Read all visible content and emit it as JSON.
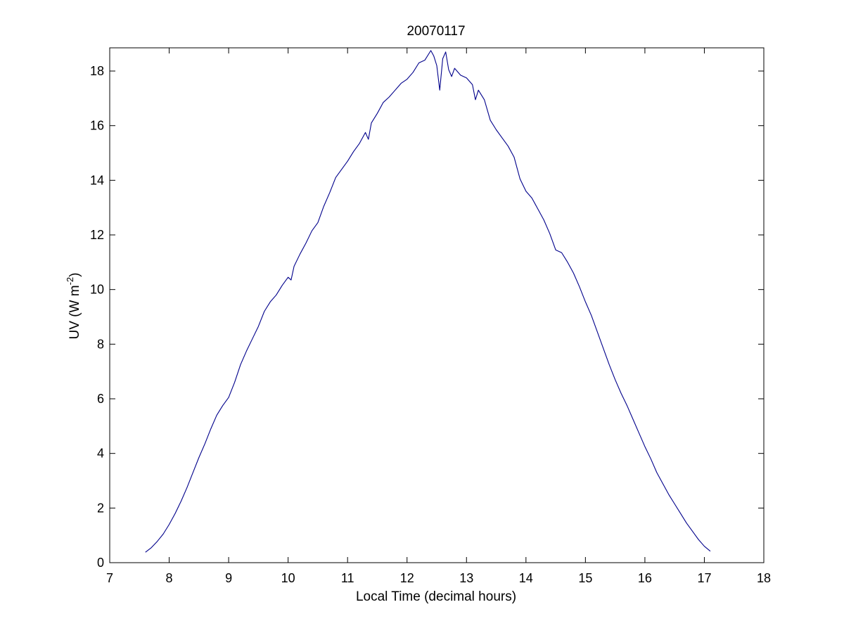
{
  "chart_data": {
    "type": "line",
    "title": "20070117",
    "xlabel": "Local Time (decimal hours)",
    "ylabel": {
      "main": "UV (W m",
      "superscript": "-2",
      "close": ")"
    },
    "xlim": [
      7,
      18
    ],
    "ylim": [
      0,
      18.85
    ],
    "xticks": [
      7,
      8,
      9,
      10,
      11,
      12,
      13,
      14,
      15,
      16,
      17,
      18
    ],
    "yticks": [
      0,
      2,
      4,
      6,
      8,
      10,
      12,
      14,
      16,
      18
    ],
    "grid": false,
    "box": true,
    "series": [
      {
        "color": "#00008b",
        "points": [
          [
            7.6,
            0.38
          ],
          [
            7.7,
            0.55
          ],
          [
            7.8,
            0.78
          ],
          [
            7.9,
            1.05
          ],
          [
            8.0,
            1.4
          ],
          [
            8.1,
            1.8
          ],
          [
            8.2,
            2.25
          ],
          [
            8.3,
            2.75
          ],
          [
            8.4,
            3.3
          ],
          [
            8.5,
            3.85
          ],
          [
            8.6,
            4.35
          ],
          [
            8.7,
            4.9
          ],
          [
            8.8,
            5.4
          ],
          [
            8.9,
            5.75
          ],
          [
            9.0,
            6.05
          ],
          [
            9.1,
            6.6
          ],
          [
            9.2,
            7.25
          ],
          [
            9.3,
            7.75
          ],
          [
            9.4,
            8.2
          ],
          [
            9.5,
            8.65
          ],
          [
            9.6,
            9.2
          ],
          [
            9.7,
            9.55
          ],
          [
            9.8,
            9.8
          ],
          [
            9.9,
            10.15
          ],
          [
            10.0,
            10.45
          ],
          [
            10.05,
            10.35
          ],
          [
            10.1,
            10.85
          ],
          [
            10.2,
            11.3
          ],
          [
            10.3,
            11.7
          ],
          [
            10.4,
            12.15
          ],
          [
            10.5,
            12.45
          ],
          [
            10.6,
            13.05
          ],
          [
            10.7,
            13.55
          ],
          [
            10.8,
            14.1
          ],
          [
            10.9,
            14.4
          ],
          [
            11.0,
            14.7
          ],
          [
            11.1,
            15.05
          ],
          [
            11.2,
            15.35
          ],
          [
            11.3,
            15.75
          ],
          [
            11.35,
            15.5
          ],
          [
            11.4,
            16.1
          ],
          [
            11.5,
            16.45
          ],
          [
            11.6,
            16.85
          ],
          [
            11.7,
            17.05
          ],
          [
            11.8,
            17.3
          ],
          [
            11.9,
            17.55
          ],
          [
            12.0,
            17.7
          ],
          [
            12.1,
            17.95
          ],
          [
            12.2,
            18.3
          ],
          [
            12.3,
            18.4
          ],
          [
            12.4,
            18.75
          ],
          [
            12.45,
            18.55
          ],
          [
            12.5,
            18.2
          ],
          [
            12.55,
            17.3
          ],
          [
            12.6,
            18.45
          ],
          [
            12.65,
            18.7
          ],
          [
            12.7,
            18.05
          ],
          [
            12.75,
            17.8
          ],
          [
            12.8,
            18.1
          ],
          [
            12.9,
            17.85
          ],
          [
            13.0,
            17.75
          ],
          [
            13.1,
            17.5
          ],
          [
            13.15,
            16.95
          ],
          [
            13.2,
            17.3
          ],
          [
            13.3,
            16.95
          ],
          [
            13.4,
            16.2
          ],
          [
            13.5,
            15.85
          ],
          [
            13.6,
            15.55
          ],
          [
            13.7,
            15.25
          ],
          [
            13.8,
            14.85
          ],
          [
            13.9,
            14.05
          ],
          [
            14.0,
            13.6
          ],
          [
            14.1,
            13.35
          ],
          [
            14.2,
            12.95
          ],
          [
            14.3,
            12.55
          ],
          [
            14.4,
            12.05
          ],
          [
            14.5,
            11.45
          ],
          [
            14.6,
            11.35
          ],
          [
            14.7,
            11.0
          ],
          [
            14.8,
            10.6
          ],
          [
            14.9,
            10.1
          ],
          [
            15.0,
            9.55
          ],
          [
            15.1,
            9.05
          ],
          [
            15.2,
            8.45
          ],
          [
            15.3,
            7.85
          ],
          [
            15.4,
            7.25
          ],
          [
            15.5,
            6.7
          ],
          [
            15.6,
            6.2
          ],
          [
            15.7,
            5.75
          ],
          [
            15.8,
            5.25
          ],
          [
            15.9,
            4.75
          ],
          [
            16.0,
            4.25
          ],
          [
            16.1,
            3.8
          ],
          [
            16.2,
            3.3
          ],
          [
            16.3,
            2.9
          ],
          [
            16.4,
            2.5
          ],
          [
            16.5,
            2.15
          ],
          [
            16.6,
            1.8
          ],
          [
            16.7,
            1.45
          ],
          [
            16.8,
            1.15
          ],
          [
            16.9,
            0.85
          ],
          [
            17.0,
            0.6
          ],
          [
            17.1,
            0.42
          ]
        ]
      }
    ]
  }
}
